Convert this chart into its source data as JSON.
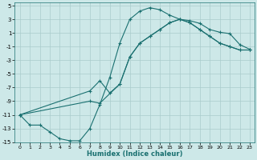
{
  "xlabel": "Humidex (Indice chaleur)",
  "bg_color": "#cde8e8",
  "grid_color": "#aacccc",
  "line_color": "#1a7070",
  "xlim": [
    -0.5,
    23.5
  ],
  "ylim": [
    -15,
    5.5
  ],
  "xticks": [
    0,
    1,
    2,
    3,
    4,
    5,
    6,
    7,
    8,
    9,
    10,
    11,
    12,
    13,
    14,
    15,
    16,
    17,
    18,
    19,
    20,
    21,
    22,
    23
  ],
  "yticks": [
    -15,
    -13,
    -11,
    -9,
    -7,
    -5,
    -3,
    -1,
    1,
    3,
    5
  ],
  "curve_upper_x": [
    0,
    1,
    2,
    3,
    4,
    5,
    6,
    7,
    8,
    9,
    10,
    11,
    12,
    13,
    14,
    15,
    16,
    17,
    18,
    19,
    20,
    21,
    22,
    23
  ],
  "curve_upper_y": [
    -11,
    -12.5,
    -12.5,
    -13.5,
    -14.5,
    -14.8,
    -14.8,
    -13.0,
    -9.5,
    -5.5,
    -0.5,
    3.0,
    4.2,
    4.7,
    4.4,
    3.6,
    3.0,
    2.8,
    2.4,
    1.5,
    1.1,
    0.9,
    -0.7,
    -1.4
  ],
  "curve_diag1_x": [
    0,
    7,
    8,
    10,
    11,
    12,
    13,
    14,
    15,
    16,
    17,
    18,
    19,
    20,
    21,
    22,
    23
  ],
  "curve_diag1_y": [
    -11,
    -9.0,
    -9.3,
    -6.5,
    -2.5,
    -0.5,
    0.5,
    1.5,
    2.5,
    3.0,
    2.5,
    1.5,
    0.5,
    -0.5,
    -1.0,
    -1.5,
    -1.5
  ],
  "curve_diag2_x": [
    0,
    7,
    8,
    9,
    10,
    11,
    12,
    13,
    14,
    15,
    16,
    17,
    18,
    19,
    20,
    21,
    22,
    23
  ],
  "curve_diag2_y": [
    -11,
    -7.5,
    -6.0,
    -7.8,
    -6.5,
    -2.5,
    -0.5,
    0.5,
    1.5,
    2.5,
    3.0,
    2.5,
    1.5,
    0.5,
    -0.5,
    -1.0,
    -1.5,
    -1.5
  ]
}
